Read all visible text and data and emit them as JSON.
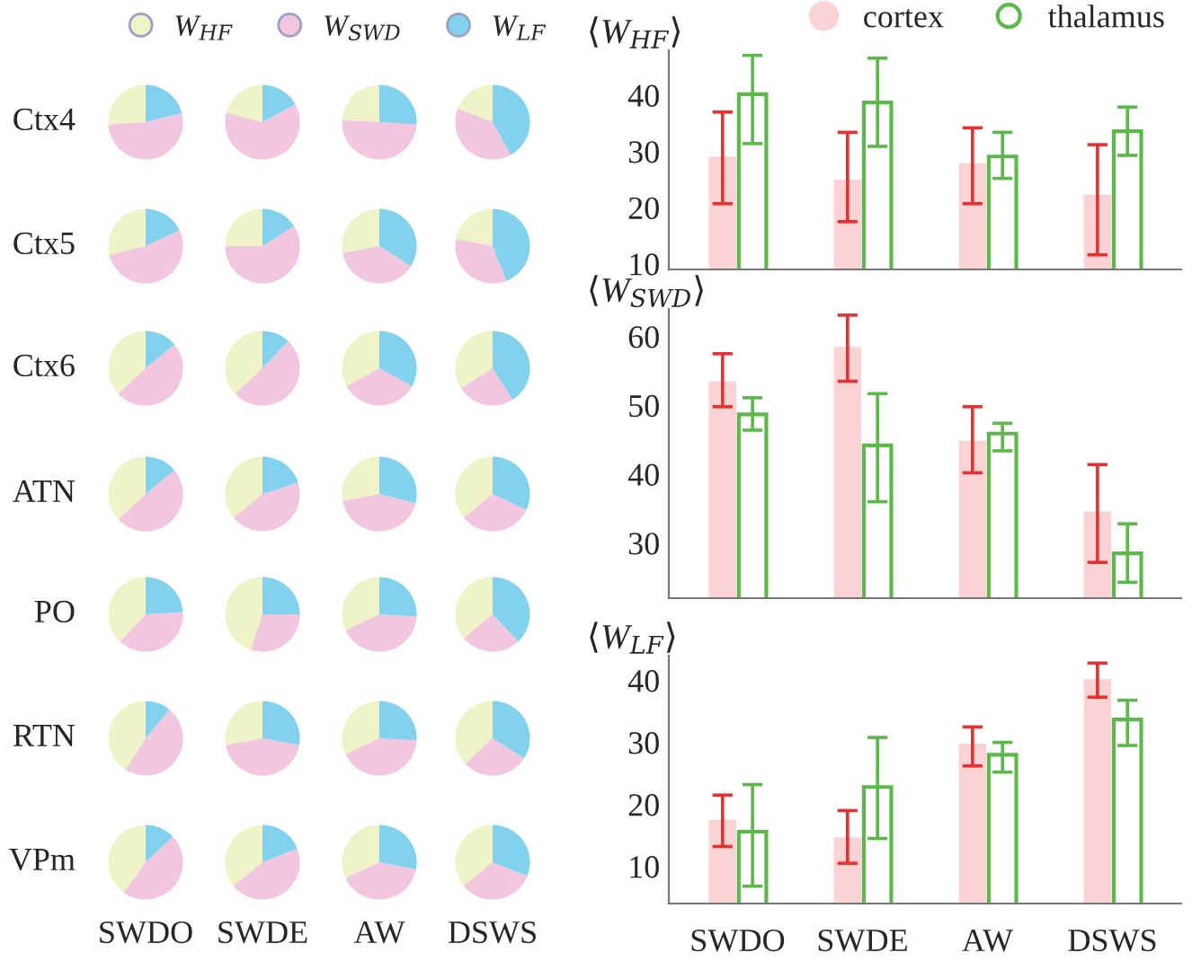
{
  "chart_data": [
    {
      "type": "pie",
      "categories": [
        "W$_{HF}$",
        "W$_{SWD}$",
        "W$_{LF}$"
      ],
      "values": [
        26,
        53,
        21
      ],
      "colors": [
        "#eef3c8",
        "#f2c6de",
        "#82d2ee"
      ],
      "legend": "top",
      "ylabel": "Ctx4"
    },
    {
      "type": "pie",
      "categories": [
        null,
        null,
        null
      ],
      "values": [
        21,
        62,
        17
      ],
      "colors": [
        "#eef3c8",
        "#f2c6de",
        "#82d2ee"
      ]
    },
    {
      "type": "pie",
      "categories": [
        null,
        null,
        null
      ],
      "values": [
        24,
        50,
        26
      ],
      "colors": [
        "#eef3c8",
        "#f2c6de",
        "#82d2ee"
      ]
    },
    {
      "type": "pie",
      "categories": [
        null,
        null,
        null
      ],
      "values": [
        19,
        39,
        42
      ],
      "colors": [
        "#eef3c8",
        "#f2c6de",
        "#82d2ee"
      ]
    },
    {
      "type": "pie",
      "categories": [
        null,
        null,
        null
      ],
      "values": [
        29,
        53,
        18
      ],
      "colors": [
        "#eef3c8",
        "#f2c6de",
        "#82d2ee"
      ],
      "ylabel": "Ctx5"
    },
    {
      "type": "pie",
      "categories": [
        null,
        null,
        null
      ],
      "values": [
        25,
        59,
        16
      ],
      "colors": [
        "#eef3c8",
        "#f2c6de",
        "#82d2ee"
      ]
    },
    {
      "type": "pie",
      "categories": [
        null,
        null,
        null
      ],
      "values": [
        28,
        38,
        34
      ],
      "colors": [
        "#eef3c8",
        "#f2c6de",
        "#82d2ee"
      ]
    },
    {
      "type": "pie",
      "categories": [
        null,
        null,
        null
      ],
      "values": [
        22,
        34,
        44
      ],
      "colors": [
        "#eef3c8",
        "#f2c6de",
        "#82d2ee"
      ]
    },
    {
      "type": "pie",
      "categories": [
        null,
        null,
        null
      ],
      "values": [
        37,
        49,
        14
      ],
      "colors": [
        "#eef3c8",
        "#f2c6de",
        "#82d2ee"
      ],
      "ylabel": "Ctx6"
    },
    {
      "type": "pie",
      "categories": [
        null,
        null,
        null
      ],
      "values": [
        37,
        51,
        12
      ],
      "colors": [
        "#eef3c8",
        "#f2c6de",
        "#82d2ee"
      ]
    },
    {
      "type": "pie",
      "categories": [
        null,
        null,
        null
      ],
      "values": [
        33,
        34,
        33
      ],
      "colors": [
        "#eef3c8",
        "#f2c6de",
        "#82d2ee"
      ]
    },
    {
      "type": "pie",
      "categories": [
        null,
        null,
        null
      ],
      "values": [
        34,
        25,
        41
      ],
      "colors": [
        "#eef3c8",
        "#f2c6de",
        "#82d2ee"
      ]
    },
    {
      "type": "pie",
      "categories": [
        null,
        null,
        null
      ],
      "values": [
        37,
        49,
        14
      ],
      "colors": [
        "#eef3c8",
        "#f2c6de",
        "#82d2ee"
      ],
      "ylabel": "ATN"
    },
    {
      "type": "pie",
      "categories": [
        null,
        null,
        null
      ],
      "values": [
        36,
        44,
        20
      ],
      "colors": [
        "#eef3c8",
        "#f2c6de",
        "#82d2ee"
      ]
    },
    {
      "type": "pie",
      "categories": [
        null,
        null,
        null
      ],
      "values": [
        28,
        43,
        29
      ],
      "colors": [
        "#eef3c8",
        "#f2c6de",
        "#82d2ee"
      ]
    },
    {
      "type": "pie",
      "categories": [
        null,
        null,
        null
      ],
      "values": [
        36,
        32,
        32
      ],
      "colors": [
        "#eef3c8",
        "#f2c6de",
        "#82d2ee"
      ]
    },
    {
      "type": "pie",
      "categories": [
        null,
        null,
        null
      ],
      "values": [
        38,
        38,
        24
      ],
      "colors": [
        "#eef3c8",
        "#f2c6de",
        "#82d2ee"
      ],
      "ylabel": "PO"
    },
    {
      "type": "pie",
      "categories": [
        null,
        null,
        null
      ],
      "values": [
        45,
        30,
        25
      ],
      "colors": [
        "#eef3c8",
        "#f2c6de",
        "#82d2ee"
      ]
    },
    {
      "type": "pie",
      "categories": [
        null,
        null,
        null
      ],
      "values": [
        32,
        42,
        26
      ],
      "colors": [
        "#eef3c8",
        "#f2c6de",
        "#82d2ee"
      ]
    },
    {
      "type": "pie",
      "categories": [
        null,
        null,
        null
      ],
      "values": [
        36,
        26,
        38
      ],
      "colors": [
        "#eef3c8",
        "#f2c6de",
        "#82d2ee"
      ]
    },
    {
      "type": "pie",
      "categories": [
        null,
        null,
        null
      ],
      "values": [
        41,
        48,
        11
      ],
      "colors": [
        "#eef3c8",
        "#f2c6de",
        "#82d2ee"
      ],
      "ylabel": "RTN"
    },
    {
      "type": "pie",
      "categories": [
        null,
        null,
        null
      ],
      "values": [
        28,
        44,
        28
      ],
      "colors": [
        "#eef3c8",
        "#f2c6de",
        "#82d2ee"
      ]
    },
    {
      "type": "pie",
      "categories": [
        null,
        null,
        null
      ],
      "values": [
        32,
        42,
        26
      ],
      "colors": [
        "#eef3c8",
        "#f2c6de",
        "#82d2ee"
      ]
    },
    {
      "type": "pie",
      "categories": [
        null,
        null,
        null
      ],
      "values": [
        37,
        29,
        34
      ],
      "colors": [
        "#eef3c8",
        "#f2c6de",
        "#82d2ee"
      ]
    },
    {
      "type": "pie",
      "categories": [
        null,
        null,
        null
      ],
      "values": [
        40,
        47,
        13
      ],
      "colors": [
        "#eef3c8",
        "#f2c6de",
        "#82d2ee"
      ],
      "ylabel": "VPm",
      "xlabel": "SWDO"
    },
    {
      "type": "pie",
      "categories": [
        null,
        null,
        null
      ],
      "values": [
        36,
        45,
        19
      ],
      "colors": [
        "#eef3c8",
        "#f2c6de",
        "#82d2ee"
      ],
      "xlabel": "SWDE"
    },
    {
      "type": "pie",
      "categories": [
        null,
        null,
        null
      ],
      "values": [
        32,
        40,
        28
      ],
      "colors": [
        "#eef3c8",
        "#f2c6de",
        "#82d2ee"
      ],
      "xlabel": "AW"
    },
    {
      "type": "pie",
      "categories": [
        null,
        null,
        null
      ],
      "values": [
        36,
        33,
        31
      ],
      "colors": [
        "#eef3c8",
        "#f2c6de",
        "#82d2ee"
      ],
      "xlabel": "DSWS"
    },
    {
      "type": "bar",
      "ylabel": "⟨W$_{HF}$⟩",
      "categories": [
        null,
        null,
        null,
        null
      ],
      "ylim": [
        9,
        48
      ],
      "yticks": [
        10,
        20,
        30,
        40
      ],
      "legend": "top right",
      "tick_labels": "y",
      "series": [
        {
          "name": "cortex",
          "color": "#fad4d4",
          "values": [
            29.1,
            25,
            27.9,
            22.3
          ],
          "errors": [
            [
              20.7,
              37
            ],
            [
              17.5,
              33.4
            ],
            [
              20.7,
              34.2
            ],
            [
              11.6,
              31.2
            ]
          ]
        },
        {
          "name": "thalamus",
          "color": "#5cb84a",
          "values": [
            40.2,
            38.7,
            29.1,
            33.6
          ],
          "errors": [
            [
              31.4,
              47.1
            ],
            [
              30.9,
              46.6
            ],
            [
              25.2,
              33.4
            ],
            [
              29.3,
              37.9
            ]
          ]
        }
      ]
    },
    {
      "type": "bar",
      "ylabel": "⟨W$_{SWD}$⟩",
      "categories": [
        null,
        null,
        null,
        null
      ],
      "ylim": [
        22,
        64
      ],
      "yticks": [
        30,
        40,
        50,
        60
      ],
      "tick_labels": "y",
      "series": [
        {
          "color": "#fad4d4",
          "values": [
            53.5,
            58.5,
            44.9,
            34.6
          ],
          "errors": [
            [
              49.8,
              57.5
            ],
            [
              53.5,
              63.1
            ],
            [
              40.2,
              49.8
            ],
            [
              27.2,
              41.4
            ]
          ]
        },
        {
          "color": "#5cb84a",
          "values": [
            48.7,
            44.2,
            45.9,
            28.5
          ],
          "errors": [
            [
              46.4,
              51.1
            ],
            [
              36,
              51.7
            ],
            [
              43.4,
              47.4
            ],
            [
              24.3,
              32.8
            ]
          ]
        }
      ]
    },
    {
      "type": "bar",
      "ylabel": "⟨W$_{LF}$⟩",
      "categories": [
        "SWDO",
        "SWDE",
        "AW",
        "DSWS"
      ],
      "ylim": [
        4,
        44
      ],
      "yticks": [
        10,
        20,
        30,
        40
      ],
      "series": [
        {
          "color": "#fad4d4",
          "values": [
            17.5,
            14.7,
            29.8,
            40.2
          ],
          "errors": [
            [
              13.2,
              21.5
            ],
            [
              10.5,
              19
            ],
            [
              26.2,
              32.5
            ],
            [
              37.3,
              42.8
            ]
          ]
        },
        {
          "color": "#5cb84a",
          "values": [
            15.6,
            22.8,
            28,
            33.7
          ],
          "errors": [
            [
              6.8,
              23.2
            ],
            [
              14.5,
              30.8
            ],
            [
              25.2,
              30
            ],
            [
              29.5,
              36.8
            ]
          ]
        }
      ]
    }
  ]
}
